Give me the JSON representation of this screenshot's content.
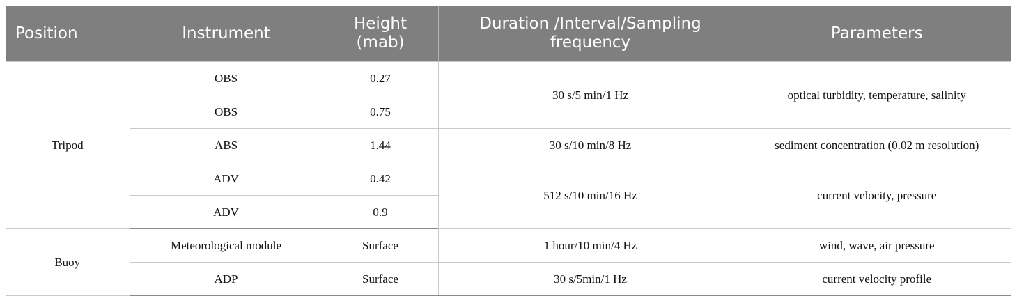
{
  "table": {
    "headers": {
      "position": "Position",
      "instrument": "Instrument",
      "height": "Height (mab)",
      "duration": "Duration /Interval/Sampling frequency",
      "parameters": "Parameters"
    },
    "tripod": {
      "position": "Tripod",
      "rows": [
        {
          "instrument": "OBS",
          "height": "0.27"
        },
        {
          "instrument": "OBS",
          "height": "0.75"
        },
        {
          "instrument": "ABS",
          "height": "1.44"
        },
        {
          "instrument": "ADV",
          "height": "0.42"
        },
        {
          "instrument": "ADV",
          "height": "0.9"
        }
      ],
      "obs_duration": "30 s/5 min/1 Hz",
      "obs_parameters": "optical turbidity, temperature, salinity",
      "abs_duration": "30 s/10 min/8 Hz",
      "abs_parameters": "sediment concentration (0.02 m resolution)",
      "adv_duration": "512 s/10 min/16 Hz",
      "adv_parameters": "current velocity, pressure"
    },
    "buoy": {
      "position": "Buoy",
      "rows": [
        {
          "instrument": "Meteorological module",
          "height": "Surface",
          "duration": "1 hour/10 min/4 Hz",
          "parameters": "wind, wave, air pressure"
        },
        {
          "instrument": "ADP",
          "height": "Surface",
          "duration": "30 s/5min/1 Hz",
          "parameters": "current velocity profile"
        }
      ]
    }
  }
}
